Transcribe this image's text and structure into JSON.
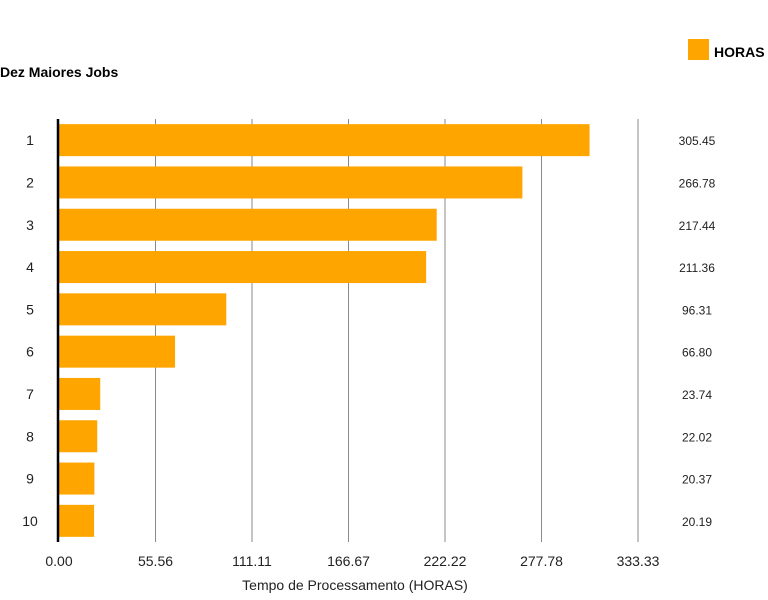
{
  "chart_data": {
    "type": "bar",
    "orientation": "horizontal",
    "title": "Dez Maiores Jobs",
    "xlabel": "Tempo de Processamento (HORAS)",
    "ylabel": "",
    "categories": [
      "1",
      "2",
      "3",
      "4",
      "5",
      "6",
      "7",
      "8",
      "9",
      "10"
    ],
    "series": [
      {
        "name": "HORAS",
        "color": "#FFA500",
        "values": [
          305.45,
          266.78,
          217.44,
          211.36,
          96.31,
          66.8,
          23.74,
          22.02,
          20.37,
          20.19
        ],
        "value_labels": [
          "305.45",
          "266.78",
          "217.44",
          "211.36",
          "96.31",
          "66.80",
          "23.74",
          "22.02",
          "20.37",
          "20.19"
        ]
      }
    ],
    "xlim": [
      0,
      333.33
    ],
    "xticks": [
      0,
      55.56,
      111.11,
      166.67,
      222.22,
      277.78,
      333.33
    ],
    "xtick_labels": [
      "0.00",
      "55.56",
      "111.11",
      "166.67",
      "222.22",
      "277.78",
      "333.33"
    ],
    "grid": true,
    "legend": "top-right"
  }
}
